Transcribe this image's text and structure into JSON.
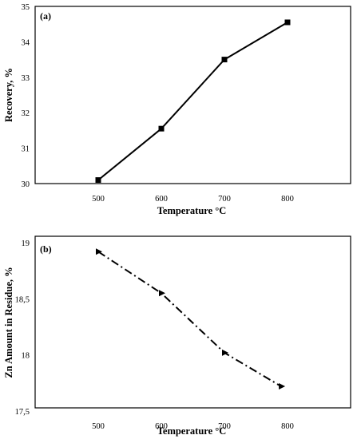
{
  "chart_data": [
    {
      "type": "line",
      "panel_label": "(a)",
      "x": [
        500,
        600,
        700,
        800
      ],
      "series": [
        {
          "values": [
            30.1,
            31.55,
            33.5,
            34.55
          ],
          "line_style": "solid",
          "marker": "square",
          "color": "#000000"
        }
      ],
      "xlabel": "Temperature °C",
      "ylabel": "Recovery, %",
      "xticks": [
        "500",
        "600",
        "700",
        "800"
      ],
      "yticks": [
        "30",
        "31",
        "32",
        "33",
        "34",
        "35"
      ],
      "xlim": [
        400,
        900
      ],
      "ylim": [
        30,
        35
      ],
      "grid": false,
      "legend": "none"
    },
    {
      "type": "line",
      "panel_label": "(b)",
      "x": [
        500,
        600,
        700,
        790
      ],
      "series": [
        {
          "values": [
            18.92,
            18.55,
            18.02,
            17.72
          ],
          "line_style": "dash-dot",
          "marker": "triangle",
          "color": "#000000"
        }
      ],
      "xlabel": "Temperature °C",
      "ylabel": "Zn Amount in Residue, %",
      "xticks": [
        "500",
        "600",
        "700",
        "800"
      ],
      "yticks": [
        "17,5",
        "18",
        "18,5",
        "19"
      ],
      "xlim": [
        400,
        900
      ],
      "ylim": [
        17.5,
        19
      ],
      "grid": false,
      "legend": "none"
    }
  ]
}
